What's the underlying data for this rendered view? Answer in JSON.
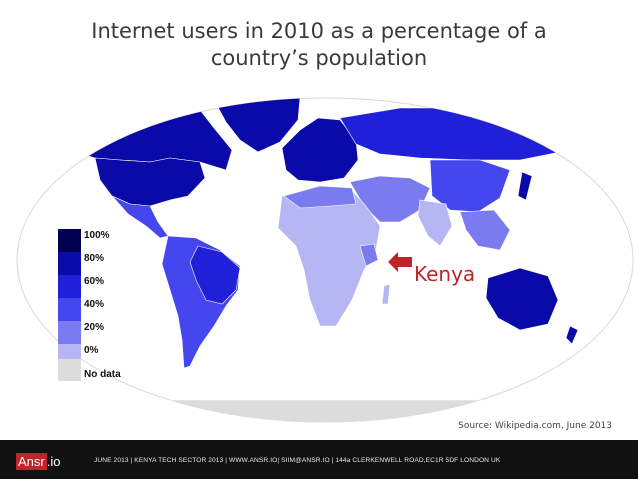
{
  "title": {
    "line1": "Internet users in 2010 as a percentage of a",
    "line2": "country’s population"
  },
  "legend": {
    "items": [
      {
        "label": "100%",
        "color": "#00004f"
      },
      {
        "label": "80%",
        "color": "#0a0aa8"
      },
      {
        "label": "60%",
        "color": "#2020d8"
      },
      {
        "label": "40%",
        "color": "#4646ee"
      },
      {
        "label": "20%",
        "color": "#7b7bf0"
      },
      {
        "label": "0%",
        "color": "#b6b6f4"
      }
    ],
    "no_data": {
      "label": "No data",
      "color": "#dcdcdc"
    }
  },
  "annotation": {
    "label": "Kenya",
    "color": "#c0242b"
  },
  "source": "Source: Wikipedia.com, June 2013",
  "footer": {
    "logo_part1": "Ansr",
    "logo_part2": ".io",
    "text": "JUNE 2013 | KENYA TECH SECTOR 2013 | WWW.ANSR.IO| SIIM@ANSR.IO | 144a CLERKENWELL ROAD,EC1R 5DF LONDON UK"
  }
}
